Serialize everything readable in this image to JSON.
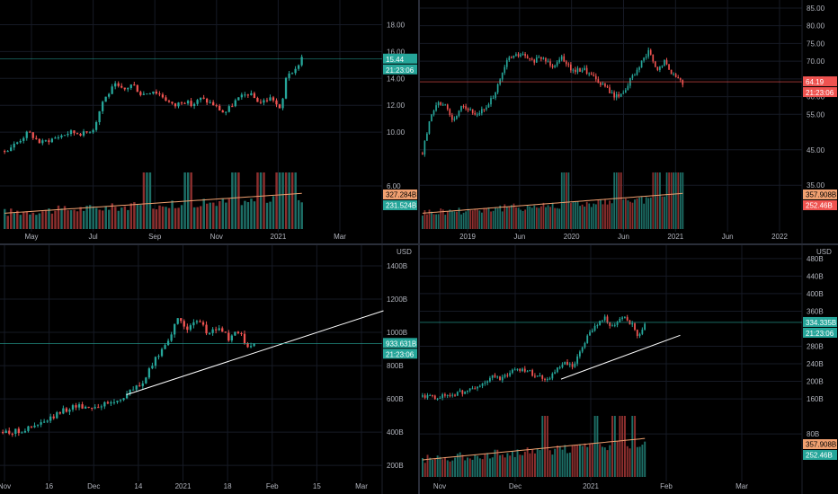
{
  "colors": {
    "background": "#000000",
    "grid": "#161a25",
    "axis_text": "#b2b5be",
    "up": "#26a69a",
    "down": "#ef5350",
    "vol_up": "#1d6e66",
    "vol_down": "#8c2f2e",
    "ma_line": "#f0a070",
    "trend_line": "#ffffff",
    "price_line_green": "#26a69a",
    "price_line_red": "#ef5350"
  },
  "chart_data": [
    {
      "type": "candlestick",
      "x_ticks": [
        "May",
        "Jul",
        "Sep",
        "Nov",
        "2021",
        "Mar"
      ],
      "y_ticks": [
        "6.00",
        "10.00",
        "12.00",
        "14.00",
        "16.00",
        "18.00"
      ],
      "ylim": [
        5.0,
        19.5
      ],
      "shape": [
        [
          0,
          8.6
        ],
        [
          0.04,
          9.2
        ],
        [
          0.08,
          10.0
        ],
        [
          0.12,
          9.2
        ],
        [
          0.16,
          9.5
        ],
        [
          0.22,
          10.0
        ],
        [
          0.27,
          9.9
        ],
        [
          0.3,
          10.3
        ],
        [
          0.33,
          12.3
        ],
        [
          0.37,
          13.5
        ],
        [
          0.4,
          13.1
        ],
        [
          0.43,
          13.6
        ],
        [
          0.46,
          12.8
        ],
        [
          0.5,
          13.1
        ],
        [
          0.53,
          12.7
        ],
        [
          0.57,
          11.9
        ],
        [
          0.6,
          12.4
        ],
        [
          0.63,
          12.0
        ],
        [
          0.66,
          12.5
        ],
        [
          0.7,
          12.1
        ],
        [
          0.74,
          11.4
        ],
        [
          0.78,
          12.4
        ],
        [
          0.82,
          12.9
        ],
        [
          0.86,
          12.2
        ],
        [
          0.9,
          12.6
        ],
        [
          0.93,
          11.5
        ],
        [
          0.95,
          14.6
        ],
        [
          0.97,
          14.2
        ],
        [
          1.0,
          15.6
        ]
      ],
      "last_price": "15.44",
      "last_price_value": 15.44,
      "countdown": "21:23:06",
      "volume_labels": [
        {
          "text": "327.284B",
          "kind": "ma"
        },
        {
          "text": "231.524B",
          "kind": "vol"
        }
      ],
      "volume_spikes": [
        0.48,
        0.62,
        0.78,
        0.86,
        0.92,
        0.95,
        0.97
      ],
      "trend_line": []
    },
    {
      "type": "candlestick",
      "x_ticks": [
        "2019",
        "Jun",
        "2020",
        "Jun",
        "2021",
        "Jun",
        "2022"
      ],
      "y_ticks": [
        "35.00",
        "45.00",
        "55.00",
        "60.00",
        "65.00",
        "70.00",
        "75.00",
        "80.00",
        "85.00"
      ],
      "ylim": [
        31.0,
        86.0
      ],
      "shape": [
        [
          0,
          44
        ],
        [
          0.03,
          54
        ],
        [
          0.06,
          59
        ],
        [
          0.09,
          57
        ],
        [
          0.12,
          53
        ],
        [
          0.15,
          58
        ],
        [
          0.2,
          55
        ],
        [
          0.25,
          57
        ],
        [
          0.29,
          63
        ],
        [
          0.33,
          71
        ],
        [
          0.38,
          72
        ],
        [
          0.42,
          70
        ],
        [
          0.46,
          71
        ],
        [
          0.5,
          69
        ],
        [
          0.54,
          71
        ],
        [
          0.58,
          67
        ],
        [
          0.62,
          68
        ],
        [
          0.66,
          65
        ],
        [
          0.7,
          63
        ],
        [
          0.74,
          60
        ],
        [
          0.77,
          61
        ],
        [
          0.8,
          65
        ],
        [
          0.83,
          68
        ],
        [
          0.87,
          73
        ],
        [
          0.9,
          67
        ],
        [
          0.93,
          70
        ],
        [
          0.96,
          66
        ],
        [
          1.0,
          64
        ]
      ],
      "last_price": "64.19",
      "last_price_value": 64.19,
      "countdown": "21:23:06",
      "volume_labels": [
        {
          "text": "357.908B",
          "kind": "ma"
        },
        {
          "text": "252.46B",
          "kind": "vol"
        }
      ],
      "volume_spikes": [
        0.55,
        0.75,
        0.9,
        0.95,
        0.98,
        1.0
      ],
      "trend_line": []
    },
    {
      "type": "candlestick",
      "currency": "USD",
      "x_ticks": [
        "Nov",
        "16",
        "Dec",
        "14",
        "2021",
        "18",
        "Feb",
        "15",
        "Mar"
      ],
      "y_ticks": [
        "200B",
        "400B",
        "600B",
        "800B",
        "1000B",
        "1200B",
        "1400B"
      ],
      "ylim": [
        120,
        1470
      ],
      "shape": [
        [
          0,
          400
        ],
        [
          0.06,
          405
        ],
        [
          0.12,
          430
        ],
        [
          0.18,
          470
        ],
        [
          0.24,
          530
        ],
        [
          0.29,
          560
        ],
        [
          0.34,
          550
        ],
        [
          0.4,
          565
        ],
        [
          0.46,
          590
        ],
        [
          0.51,
          650
        ],
        [
          0.56,
          700
        ],
        [
          0.6,
          820
        ],
        [
          0.65,
          940
        ],
        [
          0.7,
          1080
        ],
        [
          0.74,
          1020
        ],
        [
          0.78,
          1070
        ],
        [
          0.82,
          990
        ],
        [
          0.86,
          1030
        ],
        [
          0.9,
          960
        ],
        [
          0.94,
          1010
        ],
        [
          0.97,
          900
        ],
        [
          1.0,
          935
        ]
      ],
      "last_price": "933.631B",
      "last_price_value": 933.631,
      "countdown": "21:23:06",
      "volume_labels": [],
      "volume_spikes": [],
      "trend_line": [
        [
          0.49,
          625
        ],
        [
          1.5,
          1130
        ]
      ]
    },
    {
      "type": "candlestick",
      "currency": "USD",
      "x_ticks": [
        "Nov",
        "Dec",
        "2021",
        "Feb",
        "Mar"
      ],
      "y_ticks": [
        "80B",
        "160B",
        "200B",
        "240B",
        "280B",
        "360B",
        "400B",
        "440B",
        "480B"
      ],
      "ylim": [
        70,
        490
      ],
      "shape": [
        [
          0,
          165
        ],
        [
          0.05,
          163
        ],
        [
          0.1,
          167
        ],
        [
          0.15,
          172
        ],
        [
          0.2,
          178
        ],
        [
          0.26,
          190
        ],
        [
          0.32,
          212
        ],
        [
          0.36,
          205
        ],
        [
          0.4,
          225
        ],
        [
          0.45,
          230
        ],
        [
          0.5,
          216
        ],
        [
          0.56,
          205
        ],
        [
          0.6,
          225
        ],
        [
          0.64,
          240
        ],
        [
          0.68,
          232
        ],
        [
          0.72,
          280
        ],
        [
          0.77,
          325
        ],
        [
          0.82,
          345
        ],
        [
          0.86,
          320
        ],
        [
          0.9,
          350
        ],
        [
          0.94,
          330
        ],
        [
          0.97,
          305
        ],
        [
          1.0,
          334
        ]
      ],
      "last_price": "334.335B",
      "last_price_value": 334.335,
      "countdown": "21:23:06",
      "volume_labels": [
        {
          "text": "357.908B",
          "kind": "ma"
        },
        {
          "text": "252.46B",
          "kind": "vol"
        }
      ],
      "volume_spikes": [
        0.55,
        0.78,
        0.86,
        0.9,
        0.95
      ],
      "trend_line": [
        [
          0.62,
          205
        ],
        [
          1.15,
          305
        ]
      ]
    }
  ]
}
